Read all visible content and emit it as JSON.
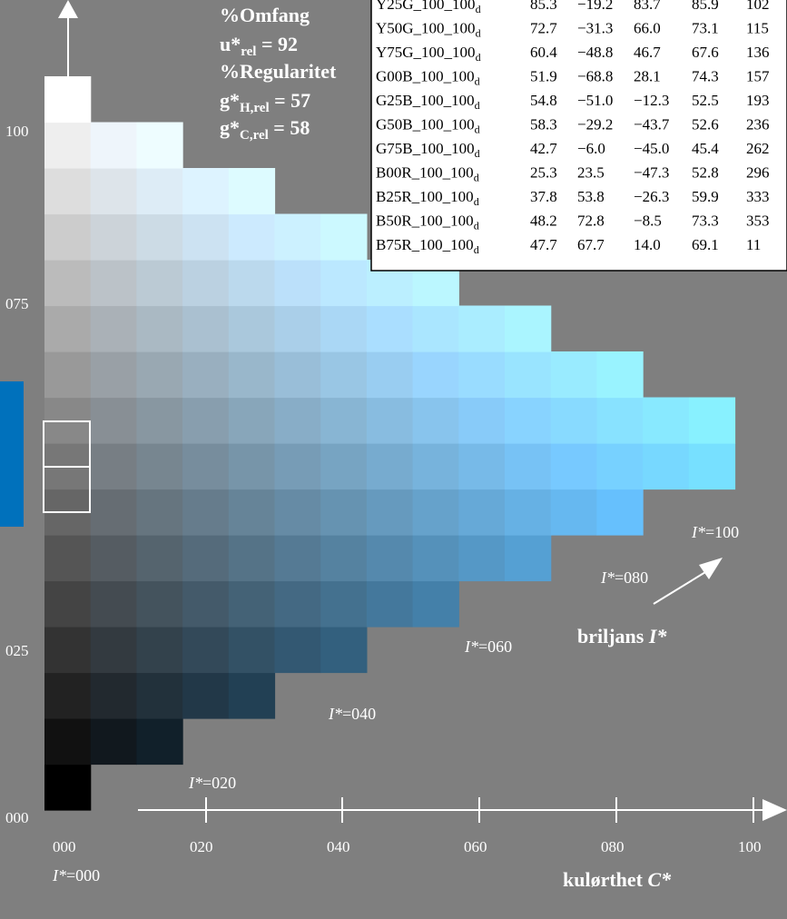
{
  "colors": {
    "background": "#7f7f7f",
    "accent_bar": "#0071bc",
    "text": "#ffffff",
    "table_bg": "#ffffff"
  },
  "stats": [
    {
      "main": "%Omfang",
      "sub": ""
    },
    {
      "main": "u*",
      "sub": "rel",
      "value": " = 92"
    },
    {
      "main": "%Regularitet",
      "sub": ""
    },
    {
      "main": "g*",
      "sub": "H,rel",
      "value": " = 57"
    },
    {
      "main": "g*",
      "sub": "C,rel",
      "value": " = 58"
    }
  ],
  "table": {
    "rows": [
      {
        "name": "Y25G_100_100",
        "L": "85.3",
        "a": "−19.2",
        "b": "83.7",
        "C": "85.9",
        "h": "102"
      },
      {
        "name": "Y50G_100_100",
        "L": "72.7",
        "a": "−31.3",
        "b": "66.0",
        "C": "73.1",
        "h": "115"
      },
      {
        "name": "Y75G_100_100",
        "L": "60.4",
        "a": "−48.8",
        "b": "46.7",
        "C": "67.6",
        "h": "136"
      },
      {
        "name": "G00B_100_100",
        "L": "51.9",
        "a": "−68.8",
        "b": "28.1",
        "C": "74.3",
        "h": "157"
      },
      {
        "name": "G25B_100_100",
        "L": "54.8",
        "a": "−51.0",
        "b": "−12.3",
        "C": "52.5",
        "h": "193"
      },
      {
        "name": "G50B_100_100",
        "L": "58.3",
        "a": "−29.2",
        "b": "−43.7",
        "C": "52.6",
        "h": "236"
      },
      {
        "name": "G75B_100_100",
        "L": "42.7",
        "a": "−6.0",
        "b": "−45.0",
        "C": "45.4",
        "h": "262"
      },
      {
        "name": "B00R_100_100",
        "L": "25.3",
        "a": "23.5",
        "b": "−47.3",
        "C": "52.8",
        "h": "296"
      },
      {
        "name": "B25R_100_100",
        "L": "37.8",
        "a": "53.8",
        "b": "−26.3",
        "C": "59.9",
        "h": "333"
      },
      {
        "name": "B50R_100_100",
        "L": "48.2",
        "a": "72.8",
        "b": "−8.5",
        "C": "73.3",
        "h": "353"
      },
      {
        "name": "B75R_100_100",
        "L": "47.7",
        "a": "67.7",
        "b": "14.0",
        "C": "69.1",
        "h": "11"
      }
    ],
    "subscript": "d"
  },
  "y_ticks": [
    "100",
    "075",
    "025",
    "000"
  ],
  "x_ticks": [
    "000",
    "020",
    "040",
    "060",
    "080",
    "100"
  ],
  "i_labels": [
    {
      "prefix": "I*",
      "value": "=100"
    },
    {
      "prefix": "I*",
      "value": "=080"
    },
    {
      "prefix": "I*",
      "value": "=060"
    },
    {
      "prefix": "I*",
      "value": "=040"
    },
    {
      "prefix": "I*",
      "value": "=020"
    },
    {
      "prefix": "I*",
      "value": "=000"
    }
  ],
  "briljans": {
    "text": "briljans ",
    "symbol": "I*"
  },
  "kulorthet": {
    "text": "kulørthet ",
    "symbol": "C*"
  },
  "grid": {
    "columns": 16,
    "rows": 16,
    "max_lightness_white": 1.0,
    "chroma_target": [
      0,
      0.44,
      0.74
    ]
  }
}
